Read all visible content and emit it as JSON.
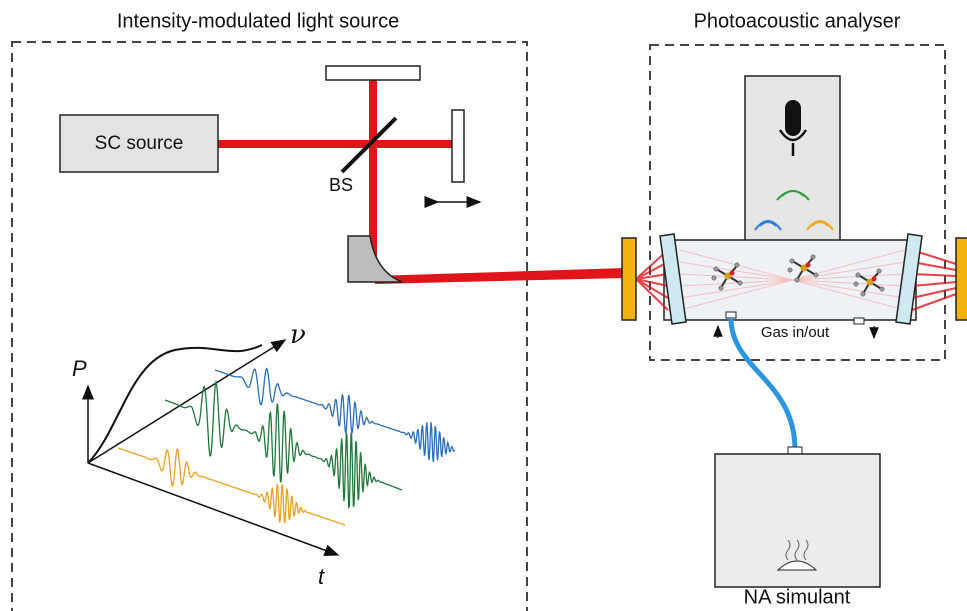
{
  "panels": [
    {
      "title": "Intensity-modulated light source"
    },
    {
      "title": "Photoacoustic analyser"
    }
  ],
  "components": {
    "source": "SC source",
    "beamsplitter": "BS",
    "gas": "Gas in/out",
    "simulant": "NA simulant"
  },
  "plot_axes": {
    "power": "P",
    "frequency": "ν",
    "time": "t"
  }
}
